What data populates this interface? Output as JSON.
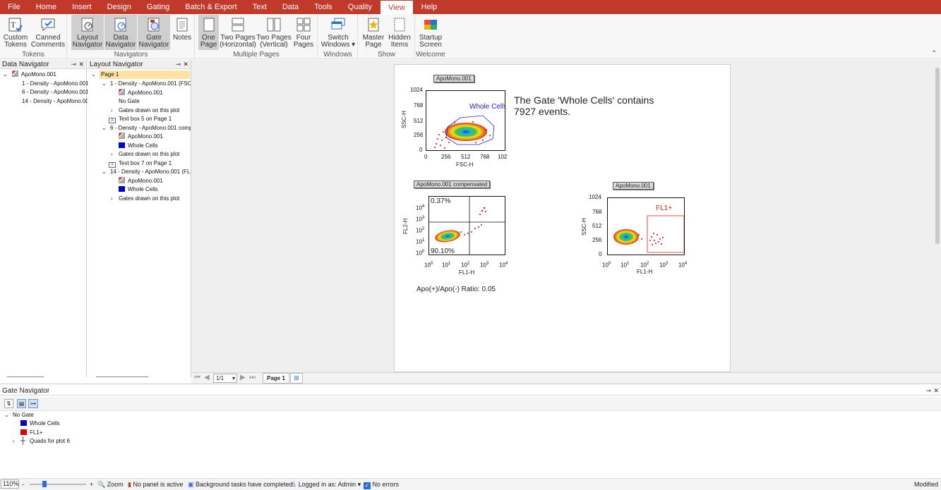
{
  "menu": [
    "File",
    "Home",
    "Insert",
    "Design",
    "Gating",
    "Batch & Export",
    "Text",
    "Data",
    "Tools",
    "Quality",
    "View",
    "Help"
  ],
  "active_menu": "View",
  "ribbon": {
    "tokens": {
      "label": "Tokens",
      "custom": [
        "Custom",
        "Tokens"
      ],
      "canned": [
        "Canned",
        "Comments"
      ]
    },
    "navigators": {
      "label": "Navigators",
      "layout": [
        "Layout",
        "Navigator"
      ],
      "data": [
        "Data",
        "Navigator"
      ],
      "gate": [
        "Gate",
        "Navigator"
      ],
      "notes": "Notes"
    },
    "pages": {
      "label": "Multiple Pages",
      "one": [
        "One",
        "Page"
      ],
      "two_h": [
        "Two Pages",
        "(Horizontal)"
      ],
      "two_v": [
        "Two Pages",
        "(Vertical)"
      ],
      "four": [
        "Four",
        "Pages"
      ]
    },
    "windows": {
      "label": "Windows",
      "switch": [
        "Switch",
        "Windows ▾"
      ]
    },
    "show": {
      "label": "Show",
      "master": [
        "Master",
        "Page"
      ],
      "hidden": [
        "Hidden",
        "Items"
      ]
    },
    "welcome": {
      "label": "Welcome",
      "startup": [
        "Startup",
        "Screen"
      ]
    }
  },
  "data_navigator": {
    "title": "Data Navigator",
    "root": "ApoMono.001",
    "items": [
      "1 - Density - ApoMono.001",
      "6 - Density - ApoMono.001",
      "14 - Density - ApoMono.00"
    ]
  },
  "layout_navigator": {
    "title": "Layout Navigator",
    "page": "Page 1",
    "rows": [
      {
        "text": "1 - Density - ApoMono.001 (FSC-H",
        "icon": "arrow-down",
        "indent": 1
      },
      {
        "text": "ApoMono.001",
        "icon": "density",
        "indent": 2
      },
      {
        "text": "No Gate",
        "icon": "none",
        "indent": 2
      },
      {
        "text": "Gates drawn on this plot",
        "icon": "arrow-right",
        "indent": 2
      },
      {
        "text": "Text box 5 on Page 1",
        "icon": "textbox",
        "indent": 1
      },
      {
        "text": "6 - Density - ApoMono.001 compe",
        "icon": "arrow-down",
        "indent": 1
      },
      {
        "text": "ApoMono.001",
        "icon": "density",
        "indent": 2
      },
      {
        "text": "Whole Cells",
        "icon": "blue",
        "indent": 2
      },
      {
        "text": "Gates drawn on this plot",
        "icon": "arrow-right",
        "indent": 2
      },
      {
        "text": "Text box 7 on Page 1",
        "icon": "textbox",
        "indent": 1
      },
      {
        "text": "14 - Density - ApoMono.001 (FL1-",
        "icon": "arrow-down",
        "indent": 1
      },
      {
        "text": "ApoMono.001",
        "icon": "density",
        "indent": 2
      },
      {
        "text": "Whole Cells",
        "icon": "blue",
        "indent": 2
      },
      {
        "text": "Gates drawn on this plot",
        "icon": "arrow-right",
        "indent": 2
      }
    ]
  },
  "plots": {
    "p1": {
      "title": "ApoMono.001",
      "gate": "Whole Cells",
      "ylabel": "SSC-H",
      "xlabel": "FSC-H",
      "yticks": [
        "1024",
        "768",
        "512",
        "256",
        "0"
      ],
      "xticks": [
        "0",
        "256",
        "512",
        "768",
        "102"
      ]
    },
    "p2": {
      "title": "ApoMono.001 compensated",
      "ylabel": "FL2-H",
      "xlabel": "FL1-H",
      "q_ul": "0.37%",
      "q_ll": "90.10%",
      "yticks": [
        "10",
        "10",
        "10",
        "10",
        "10"
      ],
      "ysup": [
        "4",
        "3",
        "2",
        "1",
        "0"
      ],
      "xticks": [
        "10",
        "10",
        "10",
        "10",
        "10"
      ],
      "xsup": [
        "0",
        "1",
        "2",
        "3",
        "4"
      ]
    },
    "p3": {
      "title": "ApoMono.001",
      "gate": "FL1+",
      "ylabel": "SSC-H",
      "xlabel": "FL1-H",
      "yticks": [
        "1024",
        "768",
        "512",
        "256",
        "0"
      ],
      "xticks": [
        "10",
        "10",
        "10",
        "10",
        "10"
      ],
      "xsup": [
        "0",
        "1",
        "2",
        "3",
        "4"
      ]
    }
  },
  "textbox1": {
    "line1": "The Gate 'Whole Cells' contains",
    "line2": "7927 events."
  },
  "textbox2": "Apo(+)/Apo(-) Ratio: 0.05",
  "tabbar": {
    "page_value": "1/1",
    "tab": "Page 1"
  },
  "gate_navigator": {
    "title": "Gate Navigator",
    "root": "No Gate",
    "items": [
      {
        "label": "Whole Cells",
        "color": "#0000cc"
      },
      {
        "label": "FL1+",
        "color": "#dd0000"
      },
      {
        "label": "Quads for plot 6",
        "color": "quad"
      }
    ]
  },
  "statusbar": {
    "zoom": "110%",
    "zoom_label": "Zoom",
    "panel": "No panel is active",
    "tasks": "Background tasks have completed",
    "login": "Logged in as: Admin",
    "errors": "No errors",
    "modified": "Modified"
  }
}
